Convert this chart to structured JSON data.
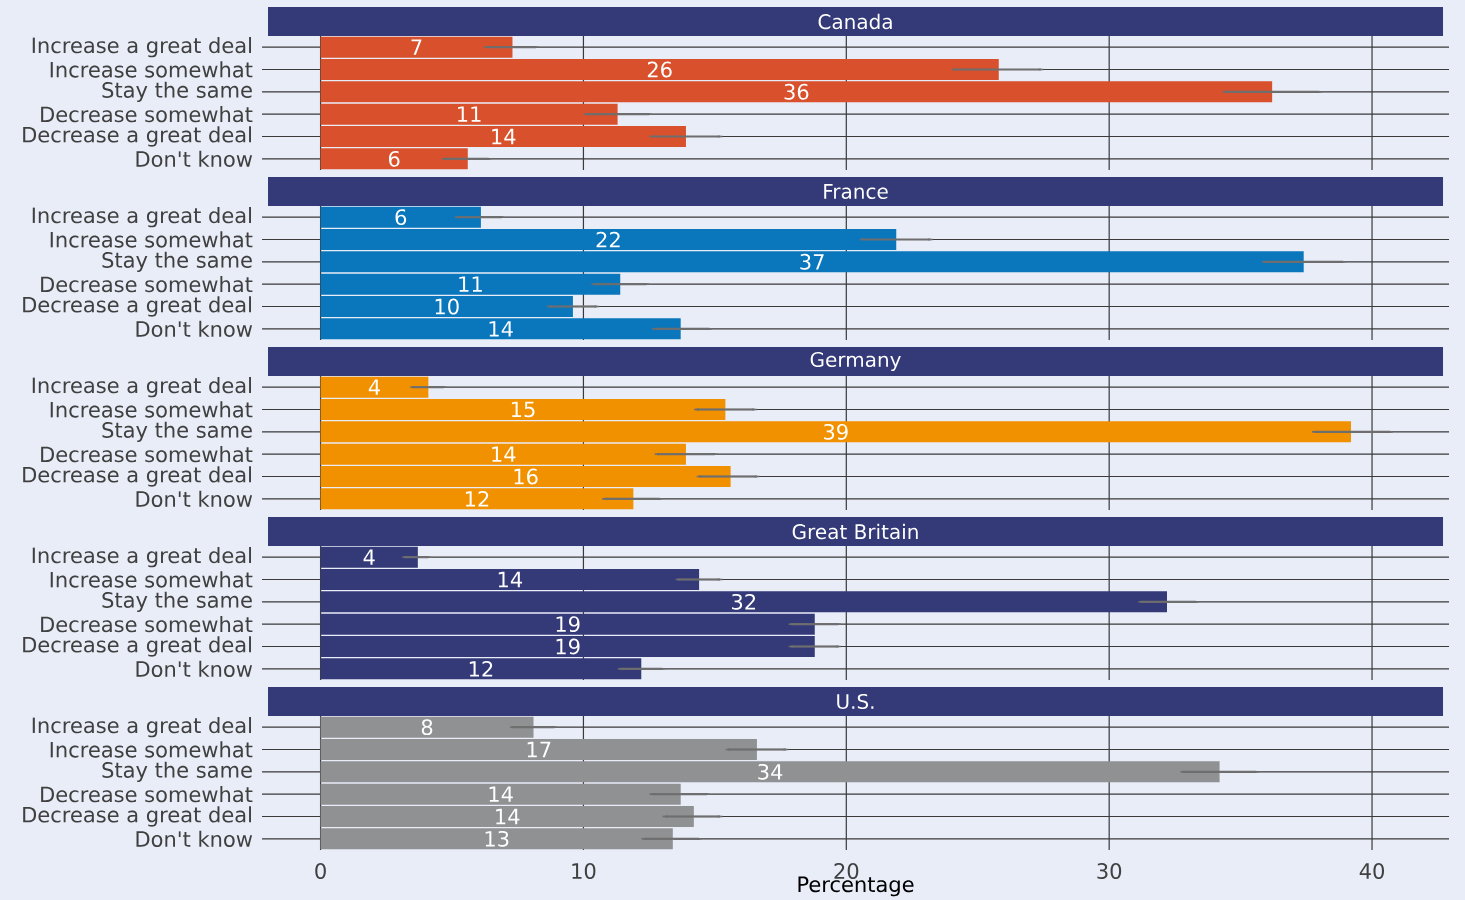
{
  "chart_data": [
    {
      "type": "bar",
      "orientation": "horizontal",
      "title": "Canada",
      "categories": [
        "Increase a great deal",
        "Increase somewhat",
        "Stay the same",
        "Decrease somewhat",
        "Decrease a great deal",
        "Don't know"
      ],
      "values": [
        7.3,
        25.8,
        36.2,
        11.3,
        13.9,
        5.6
      ],
      "errors": [
        [
          6.3,
          8.2
        ],
        [
          24.1,
          27.4
        ],
        [
          34.4,
          38.0
        ],
        [
          10.1,
          12.5
        ],
        [
          12.6,
          15.2
        ],
        [
          4.7,
          6.4
        ]
      ],
      "value_labels": [
        "7",
        "26",
        "36",
        "11",
        "14",
        "6"
      ],
      "color": "#d9512c",
      "xlim": [
        -2,
        42.7
      ],
      "xticks": [
        0,
        10,
        20,
        30,
        40
      ],
      "grid": true,
      "tick_labels": "y"
    },
    {
      "type": "bar",
      "orientation": "horizontal",
      "title": "France",
      "categories": [
        "Increase a great deal",
        "Increase somewhat",
        "Stay the same",
        "Decrease somewhat",
        "Decrease a great deal",
        "Don't know"
      ],
      "values": [
        6.1,
        21.9,
        37.4,
        11.4,
        9.6,
        13.7
      ],
      "errors": [
        [
          5.2,
          6.9
        ],
        [
          20.6,
          23.2
        ],
        [
          35.9,
          38.9
        ],
        [
          10.4,
          12.4
        ],
        [
          8.7,
          10.5
        ],
        [
          12.7,
          14.8
        ]
      ],
      "value_labels": [
        "6",
        "22",
        "37",
        "11",
        "10",
        "14"
      ],
      "color": "#0a77bd",
      "xlim": [
        -2,
        42.7
      ],
      "xticks": [
        0,
        10,
        20,
        30,
        40
      ],
      "grid": true,
      "tick_labels": "y"
    },
    {
      "type": "bar",
      "orientation": "horizontal",
      "title": "Germany",
      "categories": [
        "Increase a great deal",
        "Increase somewhat",
        "Stay the same",
        "Decrease somewhat",
        "Decrease a great deal",
        "Don't know"
      ],
      "values": [
        4.1,
        15.4,
        39.2,
        13.9,
        15.6,
        11.9
      ],
      "errors": [
        [
          3.5,
          4.7
        ],
        [
          14.3,
          16.5
        ],
        [
          37.8,
          40.7
        ],
        [
          12.8,
          15.0
        ],
        [
          14.4,
          16.6
        ],
        [
          10.8,
          12.9
        ]
      ],
      "value_labels": [
        "4",
        "15",
        "39",
        "14",
        "16",
        "12"
      ],
      "color": "#f29100",
      "xlim": [
        -2,
        42.7
      ],
      "xticks": [
        0,
        10,
        20,
        30,
        40
      ],
      "grid": true,
      "tick_labels": "y"
    },
    {
      "type": "bar",
      "orientation": "horizontal",
      "title": "Great Britain",
      "categories": [
        "Increase a great deal",
        "Increase somewhat",
        "Stay the same",
        "Decrease somewhat",
        "Decrease a great deal",
        "Don't know"
      ],
      "values": [
        3.7,
        14.4,
        32.2,
        18.8,
        18.8,
        12.2
      ],
      "errors": [
        [
          3.2,
          4.1
        ],
        [
          13.6,
          15.2
        ],
        [
          31.2,
          33.3
        ],
        [
          17.9,
          19.7
        ],
        [
          17.9,
          19.7
        ],
        [
          11.4,
          13.0
        ]
      ],
      "value_labels": [
        "4",
        "14",
        "32",
        "19",
        "19",
        "12"
      ],
      "color": "#343a78",
      "xlim": [
        -2,
        42.7
      ],
      "xticks": [
        0,
        10,
        20,
        30,
        40
      ],
      "grid": true,
      "tick_labels": "y"
    },
    {
      "type": "bar",
      "orientation": "horizontal",
      "title": "U.S.",
      "categories": [
        "Increase a great deal",
        "Increase somewhat",
        "Stay the same",
        "Decrease somewhat",
        "Decrease a great deal",
        "Don't know"
      ],
      "values": [
        8.1,
        16.6,
        34.2,
        13.7,
        14.2,
        13.4
      ],
      "errors": [
        [
          7.3,
          8.9
        ],
        [
          15.5,
          17.7
        ],
        [
          32.8,
          35.6
        ],
        [
          12.6,
          14.7
        ],
        [
          13.1,
          15.2
        ],
        [
          12.3,
          14.4
        ]
      ],
      "value_labels": [
        "8",
        "17",
        "34",
        "14",
        "14",
        "13"
      ],
      "color": "#8f9193",
      "xlim": [
        -2,
        42.7
      ],
      "xticks": [
        0,
        10,
        20,
        30,
        40
      ],
      "grid": true,
      "xlabel": "Percentage"
    }
  ]
}
